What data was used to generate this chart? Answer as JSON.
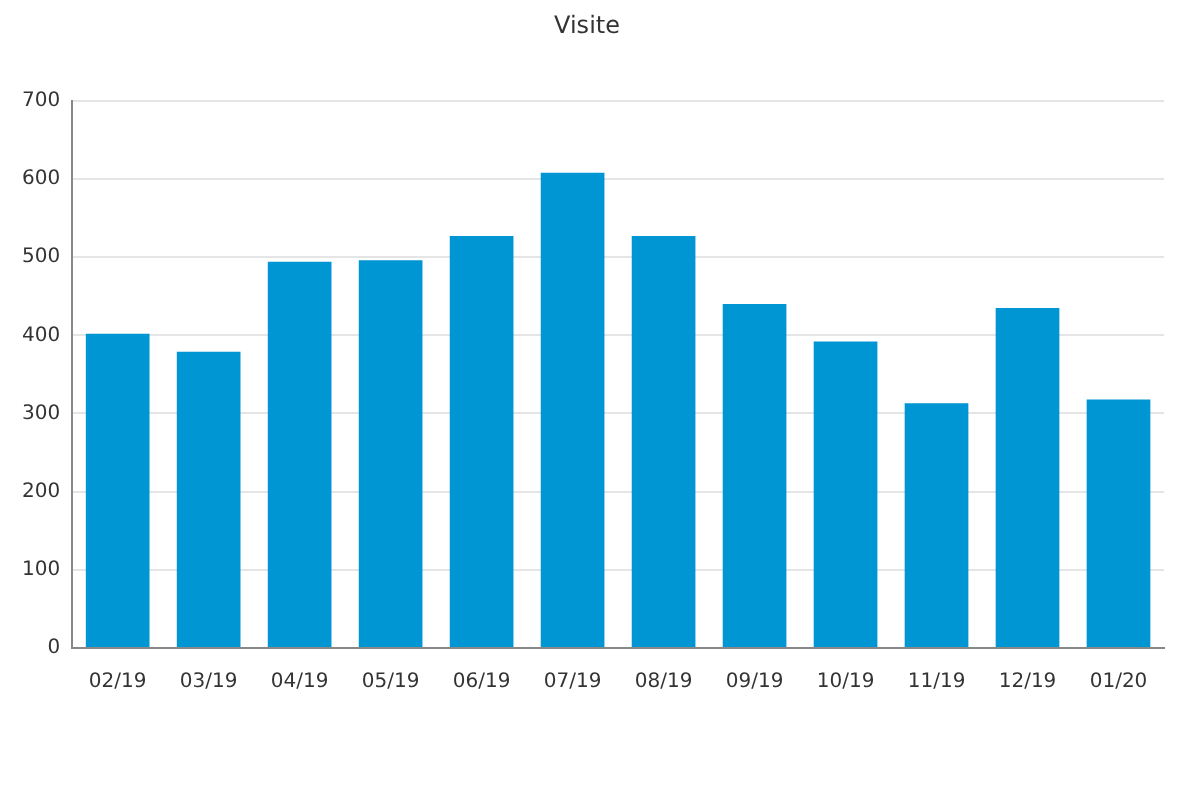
{
  "chart_data": {
    "type": "bar",
    "title": "Visite",
    "categories": [
      "02/19",
      "03/19",
      "04/19",
      "05/19",
      "06/19",
      "07/19",
      "08/19",
      "09/19",
      "10/19",
      "11/19",
      "12/19",
      "01/20"
    ],
    "values": [
      402,
      379,
      494,
      496,
      527,
      608,
      527,
      440,
      392,
      313,
      435,
      318
    ],
    "color": "#0095d3",
    "ylim": [
      0,
      700
    ],
    "yticks": [
      0,
      100,
      200,
      300,
      400,
      500,
      600,
      700
    ],
    "grid": "y"
  }
}
